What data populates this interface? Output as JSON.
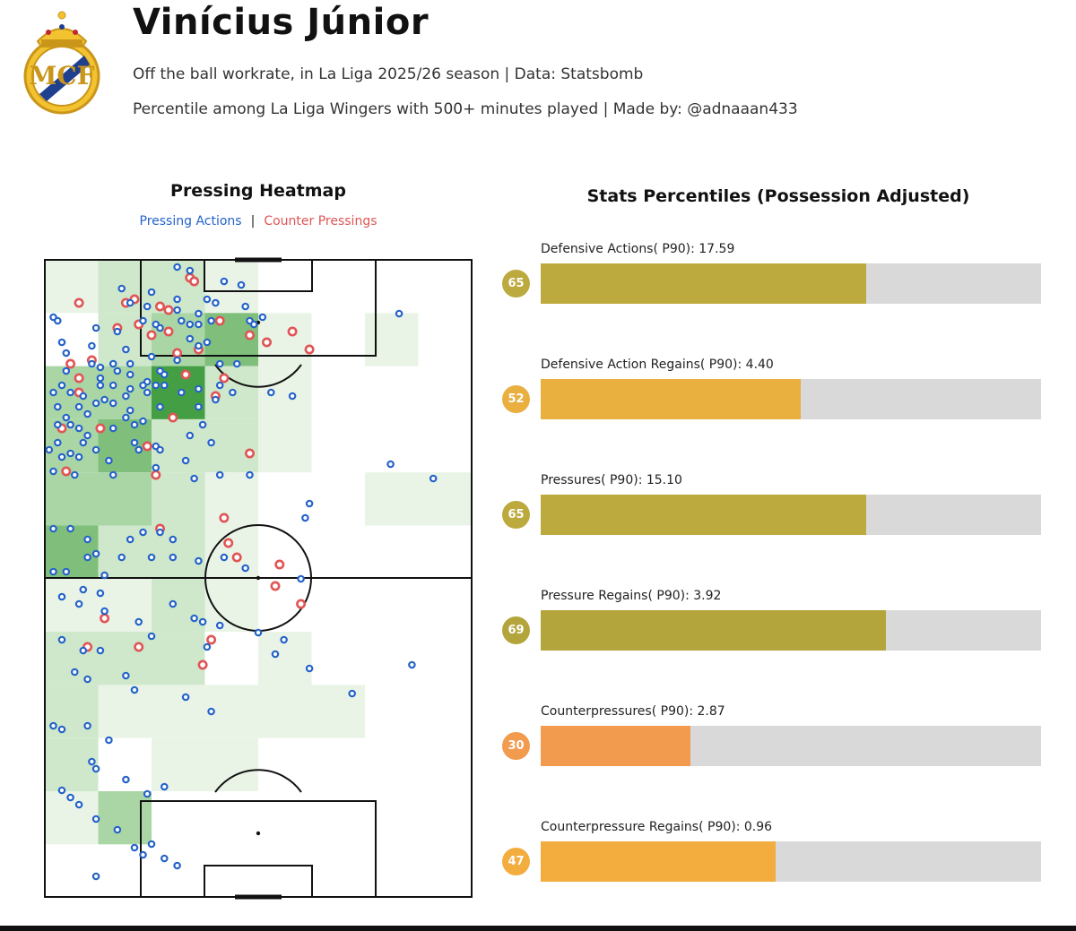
{
  "header": {
    "title": "Vinícius Júnior",
    "subtitle": "Off the ball workrate, in La Liga 2025/26 season | Data: Statsbomb",
    "subtitle2": "Percentile among La Liga Wingers with 500+ minutes played | Made by: @adnaaan433",
    "crest_icon": "real-madrid-crest-icon"
  },
  "heatmap": {
    "title": "Pressing Heatmap",
    "legend_pressing": "Pressing Actions",
    "legend_separator": "|",
    "legend_counter": "Counter Pressings",
    "pressing_color": "#2563c9",
    "counter_color": "#e05555"
  },
  "chart_data": [
    {
      "type": "heatmap",
      "title": "Pressing Heatmap",
      "grid": {
        "rows": 12,
        "cols": 8
      },
      "cells": [
        [
          1,
          2,
          2,
          1,
          0,
          0,
          0,
          0
        ],
        [
          0,
          2,
          3,
          4,
          1,
          0,
          1,
          0
        ],
        [
          3,
          3,
          5,
          2,
          1,
          0,
          0,
          0
        ],
        [
          3,
          4,
          2,
          2,
          1,
          0,
          0,
          0
        ],
        [
          3,
          3,
          2,
          1,
          0,
          0,
          1,
          1
        ],
        [
          4,
          2,
          2,
          1,
          0,
          0,
          0,
          0
        ],
        [
          1,
          1,
          2,
          1,
          0,
          0,
          0,
          0
        ],
        [
          2,
          2,
          2,
          0,
          1,
          0,
          0,
          0
        ],
        [
          2,
          1,
          1,
          1,
          1,
          1,
          0,
          0
        ],
        [
          2,
          0,
          1,
          1,
          0,
          0,
          0,
          0
        ],
        [
          1,
          3,
          0,
          0,
          0,
          0,
          0,
          0
        ],
        [
          0,
          0,
          0,
          0,
          0,
          0,
          0,
          0
        ]
      ],
      "pressing_actions": [
        [
          0.31,
          0.02
        ],
        [
          0.34,
          0.03
        ],
        [
          0.42,
          0.06
        ],
        [
          0.46,
          0.07
        ],
        [
          0.18,
          0.08
        ],
        [
          0.25,
          0.09
        ],
        [
          0.31,
          0.11
        ],
        [
          0.38,
          0.11
        ],
        [
          0.4,
          0.12
        ],
        [
          0.47,
          0.13
        ],
        [
          0.2,
          0.12
        ],
        [
          0.24,
          0.13
        ],
        [
          0.31,
          0.14
        ],
        [
          0.36,
          0.15
        ],
        [
          0.02,
          0.16
        ],
        [
          0.03,
          0.17
        ],
        [
          0.23,
          0.17
        ],
        [
          0.26,
          0.18
        ],
        [
          0.32,
          0.17
        ],
        [
          0.34,
          0.18
        ],
        [
          0.36,
          0.18
        ],
        [
          0.39,
          0.17
        ],
        [
          0.48,
          0.17
        ],
        [
          0.49,
          0.18
        ],
        [
          0.12,
          0.19
        ],
        [
          0.17,
          0.2
        ],
        [
          0.27,
          0.19
        ],
        [
          0.34,
          0.22
        ],
        [
          0.38,
          0.23
        ],
        [
          0.36,
          0.24
        ],
        [
          0.51,
          0.16
        ],
        [
          0.83,
          0.15
        ],
        [
          0.04,
          0.23
        ],
        [
          0.11,
          0.24
        ],
        [
          0.05,
          0.26
        ],
        [
          0.19,
          0.25
        ],
        [
          0.25,
          0.27
        ],
        [
          0.11,
          0.29
        ],
        [
          0.16,
          0.29
        ],
        [
          0.2,
          0.29
        ],
        [
          0.27,
          0.31
        ],
        [
          0.31,
          0.28
        ],
        [
          0.41,
          0.29
        ],
        [
          0.45,
          0.29
        ],
        [
          0.05,
          0.31
        ],
        [
          0.13,
          0.3
        ],
        [
          0.17,
          0.31
        ],
        [
          0.2,
          0.32
        ],
        [
          0.28,
          0.32
        ],
        [
          0.13,
          0.33
        ],
        [
          0.24,
          0.34
        ],
        [
          0.04,
          0.35
        ],
        [
          0.13,
          0.35
        ],
        [
          0.16,
          0.35
        ],
        [
          0.26,
          0.35
        ],
        [
          0.36,
          0.36
        ],
        [
          0.02,
          0.37
        ],
        [
          0.06,
          0.37
        ],
        [
          0.2,
          0.36
        ],
        [
          0.23,
          0.35
        ],
        [
          0.28,
          0.35
        ],
        [
          0.41,
          0.35
        ],
        [
          0.09,
          0.38
        ],
        [
          0.14,
          0.39
        ],
        [
          0.19,
          0.38
        ],
        [
          0.24,
          0.37
        ],
        [
          0.32,
          0.37
        ],
        [
          0.44,
          0.37
        ],
        [
          0.4,
          0.39
        ],
        [
          0.36,
          0.41
        ],
        [
          0.53,
          0.37
        ],
        [
          0.58,
          0.38
        ],
        [
          0.12,
          0.4
        ],
        [
          0.16,
          0.4
        ],
        [
          0.27,
          0.41
        ],
        [
          0.03,
          0.41
        ],
        [
          0.08,
          0.41
        ],
        [
          0.2,
          0.42
        ],
        [
          0.05,
          0.44
        ],
        [
          0.1,
          0.43
        ],
        [
          0.19,
          0.44
        ],
        [
          0.23,
          0.45
        ],
        [
          0.03,
          0.46
        ],
        [
          0.06,
          0.46
        ],
        [
          0.21,
          0.46
        ],
        [
          0.08,
          0.47
        ],
        [
          0.16,
          0.47
        ],
        [
          0.37,
          0.46
        ],
        [
          0.1,
          0.49
        ],
        [
          0.34,
          0.49
        ],
        [
          0.03,
          0.51
        ],
        [
          0.09,
          0.51
        ],
        [
          0.21,
          0.51
        ],
        [
          0.26,
          0.52
        ],
        [
          0.22,
          0.53
        ],
        [
          0.39,
          0.51
        ],
        [
          0.01,
          0.53
        ],
        [
          0.06,
          0.54
        ],
        [
          0.12,
          0.53
        ],
        [
          0.27,
          0.53
        ],
        [
          0.04,
          0.55
        ],
        [
          0.08,
          0.55
        ],
        [
          0.15,
          0.56
        ],
        [
          0.26,
          0.58
        ],
        [
          0.33,
          0.56
        ],
        [
          0.02,
          0.59
        ],
        [
          0.07,
          0.6
        ],
        [
          0.16,
          0.6
        ],
        [
          0.35,
          0.61
        ],
        [
          0.41,
          0.6
        ],
        [
          0.48,
          0.6
        ],
        [
          0.81,
          0.57
        ],
        [
          0.91,
          0.61
        ],
        [
          0.62,
          0.68
        ],
        [
          0.61,
          0.72
        ],
        [
          0.02,
          0.75
        ],
        [
          0.06,
          0.75
        ],
        [
          0.27,
          0.76
        ],
        [
          0.1,
          0.78
        ],
        [
          0.2,
          0.78
        ],
        [
          0.23,
          0.76
        ],
        [
          0.3,
          0.78
        ],
        [
          0.1,
          0.83
        ],
        [
          0.12,
          0.82
        ],
        [
          0.18,
          0.83
        ],
        [
          0.25,
          0.83
        ],
        [
          0.3,
          0.83
        ],
        [
          0.36,
          0.84
        ],
        [
          0.42,
          0.83
        ],
        [
          0.47,
          0.86
        ],
        [
          0.6,
          0.89
        ],
        [
          0.02,
          0.87
        ],
        [
          0.05,
          0.87
        ],
        [
          0.14,
          0.88
        ],
        [
          0.09,
          0.92
        ],
        [
          0.13,
          0.93
        ],
        [
          0.04,
          0.94
        ],
        [
          0.08,
          0.96
        ],
        [
          0.14,
          0.98
        ],
        [
          0.3,
          0.96
        ],
        [
          0.35,
          1.0
        ],
        [
          0.37,
          1.01
        ],
        [
          0.41,
          1.02
        ],
        [
          0.22,
          1.01
        ],
        [
          0.25,
          1.05
        ],
        [
          0.04,
          1.06
        ],
        [
          0.09,
          1.09
        ],
        [
          0.13,
          1.09
        ],
        [
          0.38,
          1.08
        ],
        [
          0.54,
          1.1
        ],
        [
          0.86,
          1.13
        ],
        [
          0.5,
          1.04
        ],
        [
          0.56,
          1.06
        ],
        [
          0.62,
          1.14
        ],
        [
          0.72,
          1.21
        ],
        [
          0.33,
          1.22
        ],
        [
          0.39,
          1.26
        ],
        [
          0.07,
          1.15
        ],
        [
          0.1,
          1.17
        ],
        [
          0.19,
          1.16
        ],
        [
          0.21,
          1.2
        ],
        [
          0.02,
          1.3
        ],
        [
          0.04,
          1.31
        ],
        [
          0.1,
          1.3
        ],
        [
          0.15,
          1.34
        ],
        [
          0.11,
          1.4
        ],
        [
          0.12,
          1.42
        ],
        [
          0.19,
          1.45
        ],
        [
          0.24,
          1.49
        ],
        [
          0.28,
          1.47
        ],
        [
          0.04,
          1.48
        ],
        [
          0.06,
          1.5
        ],
        [
          0.08,
          1.52
        ],
        [
          0.12,
          1.56
        ],
        [
          0.17,
          1.59
        ],
        [
          0.25,
          1.63
        ],
        [
          0.21,
          1.64
        ],
        [
          0.23,
          1.66
        ],
        [
          0.28,
          1.67
        ],
        [
          0.31,
          1.69
        ],
        [
          0.12,
          1.72
        ]
      ],
      "counter_pressings": [
        [
          0.34,
          0.05
        ],
        [
          0.35,
          0.06
        ],
        [
          0.08,
          0.12
        ],
        [
          0.19,
          0.12
        ],
        [
          0.21,
          0.11
        ],
        [
          0.27,
          0.13
        ],
        [
          0.29,
          0.14
        ],
        [
          0.17,
          0.19
        ],
        [
          0.22,
          0.18
        ],
        [
          0.29,
          0.2
        ],
        [
          0.25,
          0.21
        ],
        [
          0.31,
          0.26
        ],
        [
          0.36,
          0.25
        ],
        [
          0.41,
          0.17
        ],
        [
          0.48,
          0.21
        ],
        [
          0.52,
          0.23
        ],
        [
          0.58,
          0.2
        ],
        [
          0.62,
          0.25
        ],
        [
          0.06,
          0.29
        ],
        [
          0.11,
          0.28
        ],
        [
          0.08,
          0.33
        ],
        [
          0.08,
          0.37
        ],
        [
          0.33,
          0.32
        ],
        [
          0.42,
          0.33
        ],
        [
          0.4,
          0.38
        ],
        [
          0.04,
          0.47
        ],
        [
          0.13,
          0.47
        ],
        [
          0.24,
          0.52
        ],
        [
          0.3,
          0.44
        ],
        [
          0.05,
          0.59
        ],
        [
          0.26,
          0.6
        ],
        [
          0.48,
          0.54
        ],
        [
          0.42,
          0.72
        ],
        [
          0.27,
          0.75
        ],
        [
          0.43,
          0.79
        ],
        [
          0.45,
          0.83
        ],
        [
          0.55,
          0.85
        ],
        [
          0.54,
          0.91
        ],
        [
          0.6,
          0.96
        ],
        [
          0.14,
          1.0
        ],
        [
          0.1,
          1.08
        ],
        [
          0.22,
          1.08
        ],
        [
          0.39,
          1.06
        ],
        [
          0.37,
          1.13
        ]
      ]
    },
    {
      "type": "bar",
      "title": "Stats Percentiles (Possession Adjusted)",
      "orientation": "horizontal",
      "xlim": [
        0,
        100
      ],
      "bars": [
        {
          "label": "Defensive Actions( P90): 17.59",
          "percentile": "65",
          "value": 65,
          "color": "#bdaa3f"
        },
        {
          "label": "Defensive Action Regains( P90): 4.40",
          "percentile": "52",
          "value": 52,
          "color": "#e9b040"
        },
        {
          "label": "Pressures( P90): 15.10",
          "percentile": "65",
          "value": 65,
          "color": "#bdaa3f"
        },
        {
          "label": "Pressure Regains( P90): 3.92",
          "percentile": "69",
          "value": 69,
          "color": "#b3a53c"
        },
        {
          "label": "Counterpressures( P90): 2.87",
          "percentile": "30",
          "value": 30,
          "color": "#f29b4f"
        },
        {
          "label": "Counterpressure Regains( P90): 0.96",
          "percentile": "47",
          "value": 47,
          "color": "#f2ad3e"
        }
      ]
    }
  ]
}
